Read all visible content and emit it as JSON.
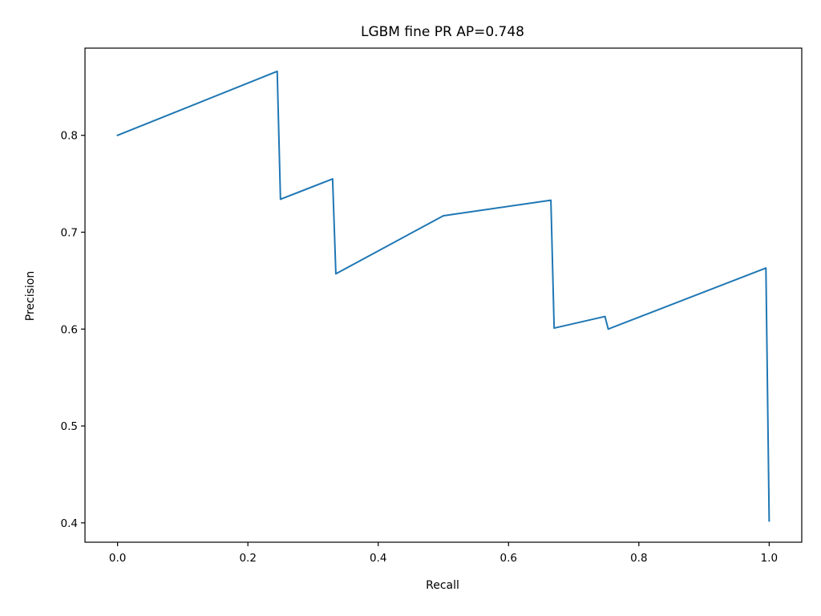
{
  "chart_data": {
    "type": "line",
    "title": "LGBM fine PR AP=0.748",
    "xlabel": "Recall",
    "ylabel": "Precision",
    "xlim": [
      -0.05,
      1.05
    ],
    "ylim": [
      0.38,
      0.89
    ],
    "grid": false,
    "xticks": [
      0.0,
      0.2,
      0.4,
      0.6,
      0.8,
      1.0
    ],
    "xtick_labels": [
      "0.0",
      "0.2",
      "0.4",
      "0.6",
      "0.8",
      "1.0"
    ],
    "yticks": [
      0.4,
      0.5,
      0.6,
      0.7,
      0.8
    ],
    "ytick_labels": [
      "0.4",
      "0.5",
      "0.6",
      "0.7",
      "0.8"
    ],
    "series": [
      {
        "color": "#1f77b4",
        "x": [
          0.0,
          0.245,
          0.25,
          0.33,
          0.335,
          0.5,
          0.665,
          0.67,
          0.748,
          0.753,
          0.995,
          1.0
        ],
        "y": [
          0.8,
          0.866,
          0.734,
          0.755,
          0.657,
          0.717,
          0.733,
          0.601,
          0.613,
          0.6,
          0.663,
          0.402
        ]
      }
    ]
  }
}
